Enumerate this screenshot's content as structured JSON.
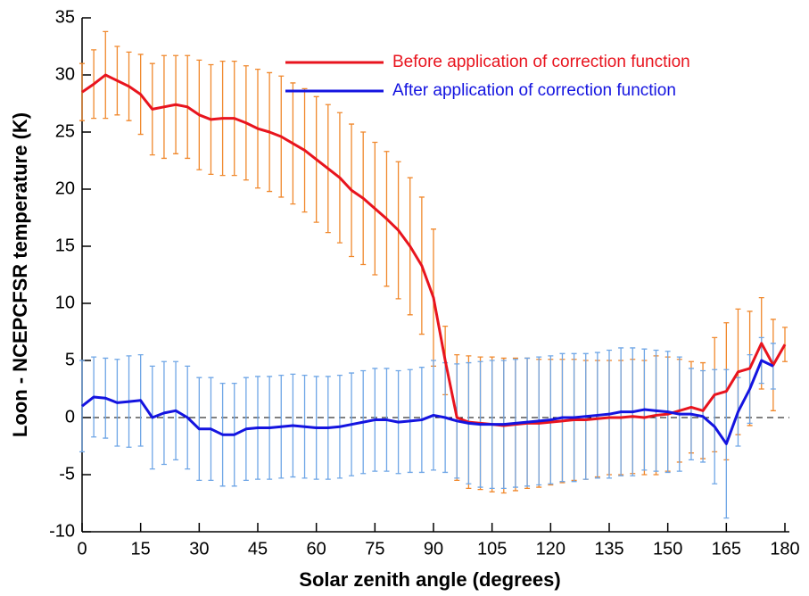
{
  "chart_data": {
    "type": "line",
    "x_label": "Solar zenith angle (degrees)",
    "y_label": "Loon - NCEPCFSR temperature (K)",
    "x": [
      0,
      3,
      6,
      9,
      12,
      15,
      18,
      21,
      24,
      27,
      30,
      33,
      36,
      39,
      42,
      45,
      48,
      51,
      54,
      57,
      60,
      63,
      66,
      69,
      72,
      75,
      78,
      81,
      84,
      87,
      90,
      93,
      96,
      99,
      102,
      105,
      108,
      111,
      114,
      117,
      120,
      123,
      126,
      129,
      132,
      135,
      138,
      141,
      144,
      147,
      150,
      153,
      156,
      159,
      162,
      165,
      168,
      171,
      174,
      177,
      180
    ],
    "series": [
      {
        "name": "Before application of correction function",
        "color": "#e8141e",
        "error_color": "#f0882c",
        "values": [
          28.5,
          29.2,
          30.0,
          29.5,
          29.0,
          28.3,
          27.0,
          27.2,
          27.4,
          27.2,
          26.5,
          26.1,
          26.2,
          26.2,
          25.8,
          25.3,
          25.0,
          24.6,
          24.0,
          23.4,
          22.6,
          21.8,
          21.0,
          19.9,
          19.2,
          18.3,
          17.4,
          16.4,
          15.0,
          13.3,
          10.5,
          5.0,
          0.0,
          -0.4,
          -0.5,
          -0.6,
          -0.7,
          -0.6,
          -0.5,
          -0.5,
          -0.4,
          -0.3,
          -0.2,
          -0.2,
          -0.1,
          0.0,
          0.0,
          0.1,
          0.0,
          0.2,
          0.3,
          0.6,
          0.9,
          0.6,
          2.0,
          2.3,
          4.0,
          4.3,
          6.5,
          4.6,
          6.4
        ],
        "errors": [
          2.5,
          3.0,
          3.8,
          3.0,
          3.0,
          3.5,
          4.0,
          4.5,
          4.3,
          4.5,
          4.8,
          4.8,
          5.0,
          5.0,
          5.0,
          5.2,
          5.2,
          5.3,
          5.3,
          5.4,
          5.5,
          5.6,
          5.7,
          5.8,
          5.8,
          5.8,
          5.9,
          6.0,
          6.0,
          6.0,
          6.0,
          3.0,
          5.5,
          5.8,
          5.8,
          5.9,
          5.9,
          5.8,
          5.7,
          5.6,
          5.5,
          5.4,
          5.3,
          5.2,
          5.1,
          5.0,
          5.0,
          5.0,
          5.0,
          5.2,
          5.0,
          4.5,
          4.0,
          4.2,
          5.0,
          6.0,
          5.5,
          5.0,
          4.0,
          4.0,
          1.5
        ]
      },
      {
        "name": "After application of correction function",
        "color": "#1414e0",
        "error_color": "#6fa6e6",
        "values": [
          1.0,
          1.8,
          1.7,
          1.3,
          1.4,
          1.5,
          0.0,
          0.4,
          0.6,
          0.0,
          -1.0,
          -1.0,
          -1.5,
          -1.5,
          -1.0,
          -0.9,
          -0.9,
          -0.8,
          -0.7,
          -0.8,
          -0.9,
          -0.9,
          -0.8,
          -0.6,
          -0.4,
          -0.2,
          -0.2,
          -0.4,
          -0.3,
          -0.2,
          0.2,
          0.0,
          -0.3,
          -0.5,
          -0.6,
          -0.6,
          -0.6,
          -0.5,
          -0.4,
          -0.3,
          -0.2,
          0.0,
          0.0,
          0.1,
          0.2,
          0.3,
          0.5,
          0.5,
          0.7,
          0.6,
          0.5,
          0.3,
          0.3,
          0.1,
          -0.8,
          -2.3,
          0.5,
          2.5,
          5.0,
          4.5,
          null
        ],
        "errors": [
          4.0,
          3.5,
          3.5,
          3.8,
          4.0,
          4.0,
          4.5,
          4.5,
          4.3,
          4.5,
          4.5,
          4.5,
          4.5,
          4.5,
          4.5,
          4.5,
          4.5,
          4.5,
          4.5,
          4.5,
          4.5,
          4.5,
          4.5,
          4.5,
          4.5,
          4.5,
          4.5,
          4.5,
          4.5,
          4.6,
          4.8,
          4.8,
          5.0,
          5.3,
          5.5,
          5.6,
          5.6,
          5.6,
          5.6,
          5.6,
          5.6,
          5.6,
          5.6,
          5.5,
          5.5,
          5.6,
          5.6,
          5.6,
          5.3,
          5.3,
          5.3,
          5.0,
          4.0,
          4.0,
          5.0,
          6.5,
          3.0,
          3.0,
          2.0,
          2.0,
          null
        ]
      }
    ],
    "xlim": [
      0,
      180
    ],
    "xticks": [
      0,
      15,
      30,
      45,
      60,
      75,
      90,
      105,
      120,
      135,
      150,
      165,
      180
    ],
    "ylim": [
      -10,
      35
    ],
    "yticks": [
      -10,
      -5,
      0,
      5,
      10,
      15,
      20,
      25,
      30,
      35
    ],
    "hline": 0,
    "legend": "upper right"
  }
}
